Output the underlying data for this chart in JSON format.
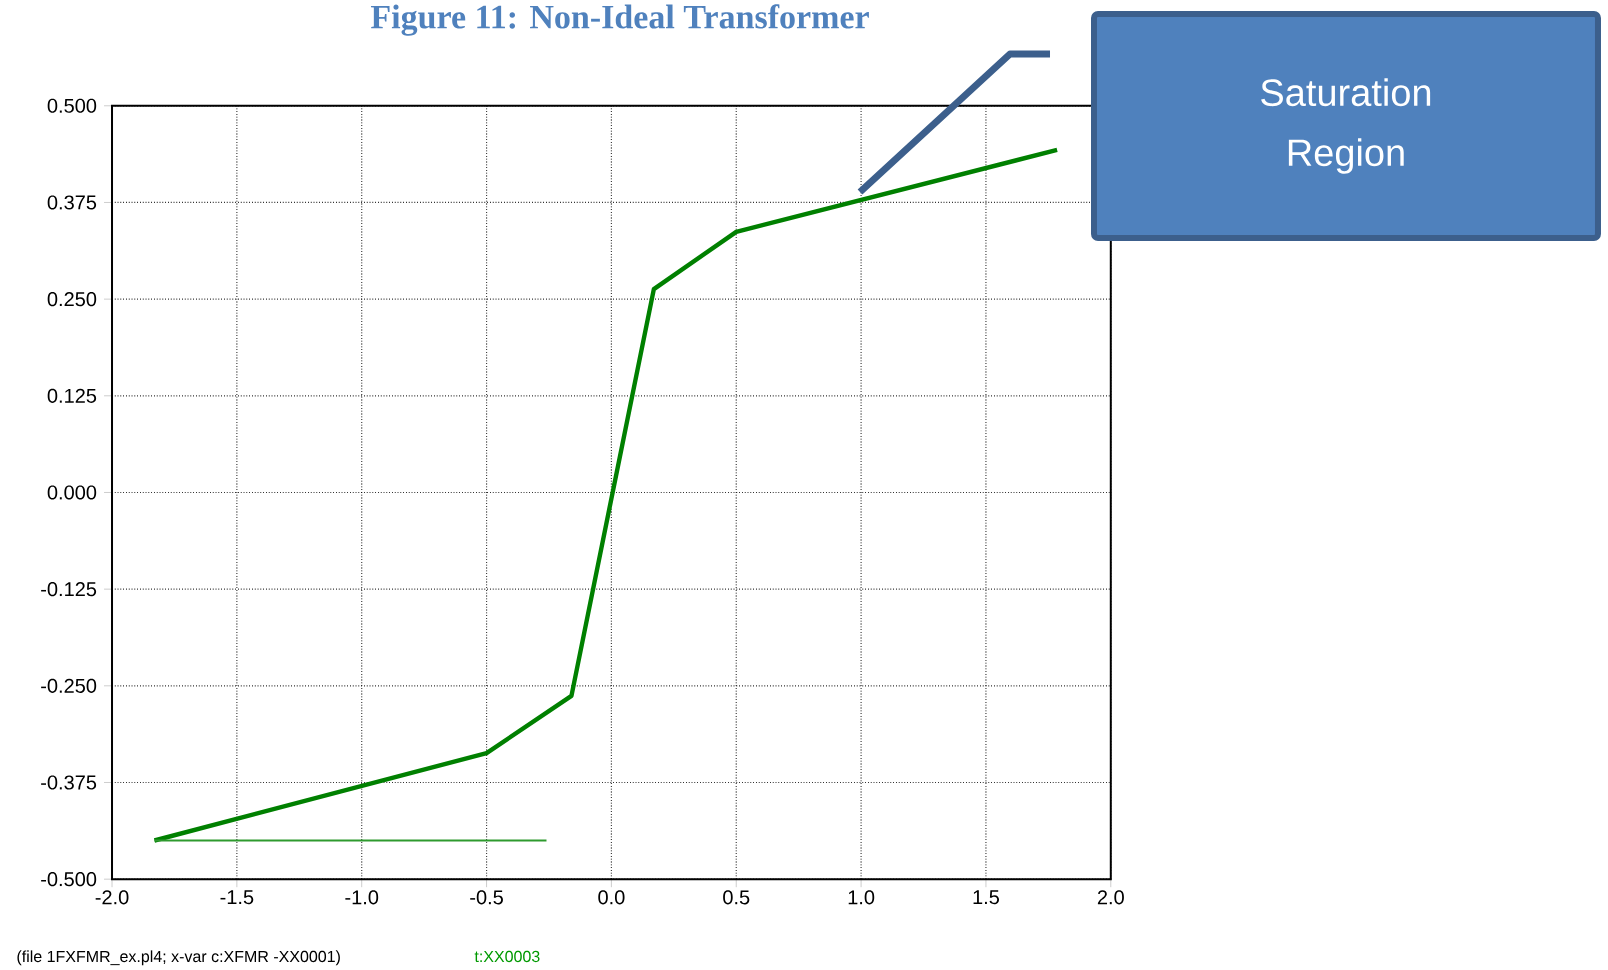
{
  "chart_data": {
    "type": "line",
    "title": "Figure 11: Non-Ideal Transformer",
    "series": [
      {
        "color": "#008000",
        "x": [
          -1.83,
          -0.5,
          -0.16,
          0.17,
          0.5,
          1.785
        ],
        "values": [
          -0.45,
          -0.337,
          -0.263,
          0.263,
          0.337,
          0.443
        ]
      },
      {
        "color": "#2e9a2e",
        "x": [
          -1.83,
          -0.26
        ],
        "values": [
          -0.45,
          -0.45
        ]
      }
    ],
    "xlim": [
      -2,
      2
    ],
    "ylim": [
      -0.5,
      0.5
    ],
    "xticks": [
      {
        "value": -2,
        "label": "-2.0"
      },
      {
        "value": -1.5,
        "label": "-1.5"
      },
      {
        "value": -1,
        "label": "-1.0"
      },
      {
        "value": -0.5,
        "label": "-0.5"
      },
      {
        "value": 0,
        "label": "0.0"
      },
      {
        "value": 0.5,
        "label": "0.5"
      },
      {
        "value": 1,
        "label": "1.0"
      },
      {
        "value": 1.5,
        "label": "1.5"
      },
      {
        "value": 2,
        "label": "2.0"
      }
    ],
    "yticks": [
      {
        "value": -0.5,
        "label": "-0.500"
      },
      {
        "value": -0.375,
        "label": "-0.375"
      },
      {
        "value": -0.25,
        "label": "-0.250"
      },
      {
        "value": -0.125,
        "label": "-0.125"
      },
      {
        "value": 0,
        "label": "0.000"
      },
      {
        "value": 0.125,
        "label": "0.125"
      },
      {
        "value": 0.25,
        "label": "0.250"
      },
      {
        "value": 0.375,
        "label": "0.375"
      },
      {
        "value": 0.5,
        "label": "0.500"
      }
    ],
    "grid": true,
    "marker": "none",
    "line_style": "solid",
    "annotations": [
      "Saturation Region",
      "(file 1FXFMR_ex.pl4; x-var c:XFMR  -XX0001)",
      "t:XX0003"
    ]
  }
}
